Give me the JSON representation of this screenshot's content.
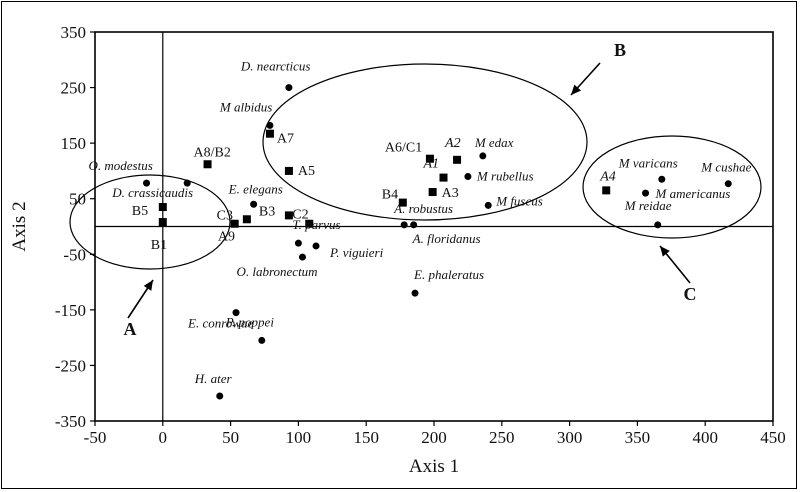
{
  "chart_data": {
    "type": "scatter",
    "xlabel": "Axis 1",
    "ylabel": "Axis 2",
    "xlim": [
      -50,
      450
    ],
    "ylim": [
      -350,
      350
    ],
    "xticks": [
      "-50",
      "0",
      "50",
      "100",
      "150",
      "200",
      "250",
      "300",
      "350",
      "400",
      "450"
    ],
    "yticks": [
      "350",
      "250",
      "150",
      "50",
      "-50",
      "-150",
      "-250",
      "-350"
    ],
    "grid": false,
    "reference_lines": {
      "x": 0,
      "y": 0
    },
    "species": [
      {
        "label": "D. nearcticus",
        "x": 93,
        "y": 250
      },
      {
        "label": "M albidus",
        "x": 79,
        "y": 182
      },
      {
        "label": "O. modestus",
        "x": -12,
        "y": 78
      },
      {
        "label": "D. crassicaudis",
        "x": 18,
        "y": 78
      },
      {
        "label": "E. elegans",
        "x": 67,
        "y": 40
      },
      {
        "label": "T. parvus",
        "x": 100,
        "y": -30
      },
      {
        "label": "P. viguieri",
        "x": 113,
        "y": -35
      },
      {
        "label": "O. labronectum",
        "x": 103,
        "y": -55
      },
      {
        "label": "E. conrowae",
        "x": 54,
        "y": -155
      },
      {
        "label": "P. poppei",
        "x": 73,
        "y": -205
      },
      {
        "label": "H. ater",
        "x": 42,
        "y": -305
      },
      {
        "label": "M edax",
        "x": 236,
        "y": 127
      },
      {
        "label": "M rubellus",
        "x": 225,
        "y": 90
      },
      {
        "label": "M fuscus",
        "x": 240,
        "y": 38
      },
      {
        "label": "A. robustus",
        "x": 178,
        "y": 3
      },
      {
        "label": "A. floridanus",
        "x": 185,
        "y": 3
      },
      {
        "label": "E. phaleratus",
        "x": 186,
        "y": -120
      },
      {
        "label": "M varicans",
        "x": 368,
        "y": 85
      },
      {
        "label": "M cushae",
        "x": 417,
        "y": 77
      },
      {
        "label": "M americanus",
        "x": 356,
        "y": 60
      },
      {
        "label": "M reidae",
        "x": 365,
        "y": 3
      }
    ],
    "sites": [
      {
        "label": "A8/B2",
        "x": 33,
        "y": 112
      },
      {
        "label": "A7",
        "x": 79,
        "y": 167
      },
      {
        "label": "A5",
        "x": 93,
        "y": 100
      },
      {
        "label": "B5",
        "x": 0,
        "y": 35
      },
      {
        "label": "B1",
        "x": 0,
        "y": 8
      },
      {
        "label": "C3",
        "x": 53,
        "y": 5
      },
      {
        "label": "A9",
        "x": 62,
        "y": 13
      },
      {
        "label": "B3",
        "x": 93,
        "y": 20
      },
      {
        "label": "C2",
        "x": 108,
        "y": 5
      },
      {
        "label": "A6/C1",
        "x": 197,
        "y": 122
      },
      {
        "label": "A2",
        "x": 217,
        "y": 120
      },
      {
        "label": "A1",
        "x": 207,
        "y": 88
      },
      {
        "label": "A3",
        "x": 199,
        "y": 62
      },
      {
        "label": "B4",
        "x": 177,
        "y": 43
      },
      {
        "label": "A4",
        "x": 327,
        "y": 65
      }
    ],
    "groups": [
      {
        "label": "A"
      },
      {
        "label": "B"
      },
      {
        "label": "C"
      }
    ]
  }
}
